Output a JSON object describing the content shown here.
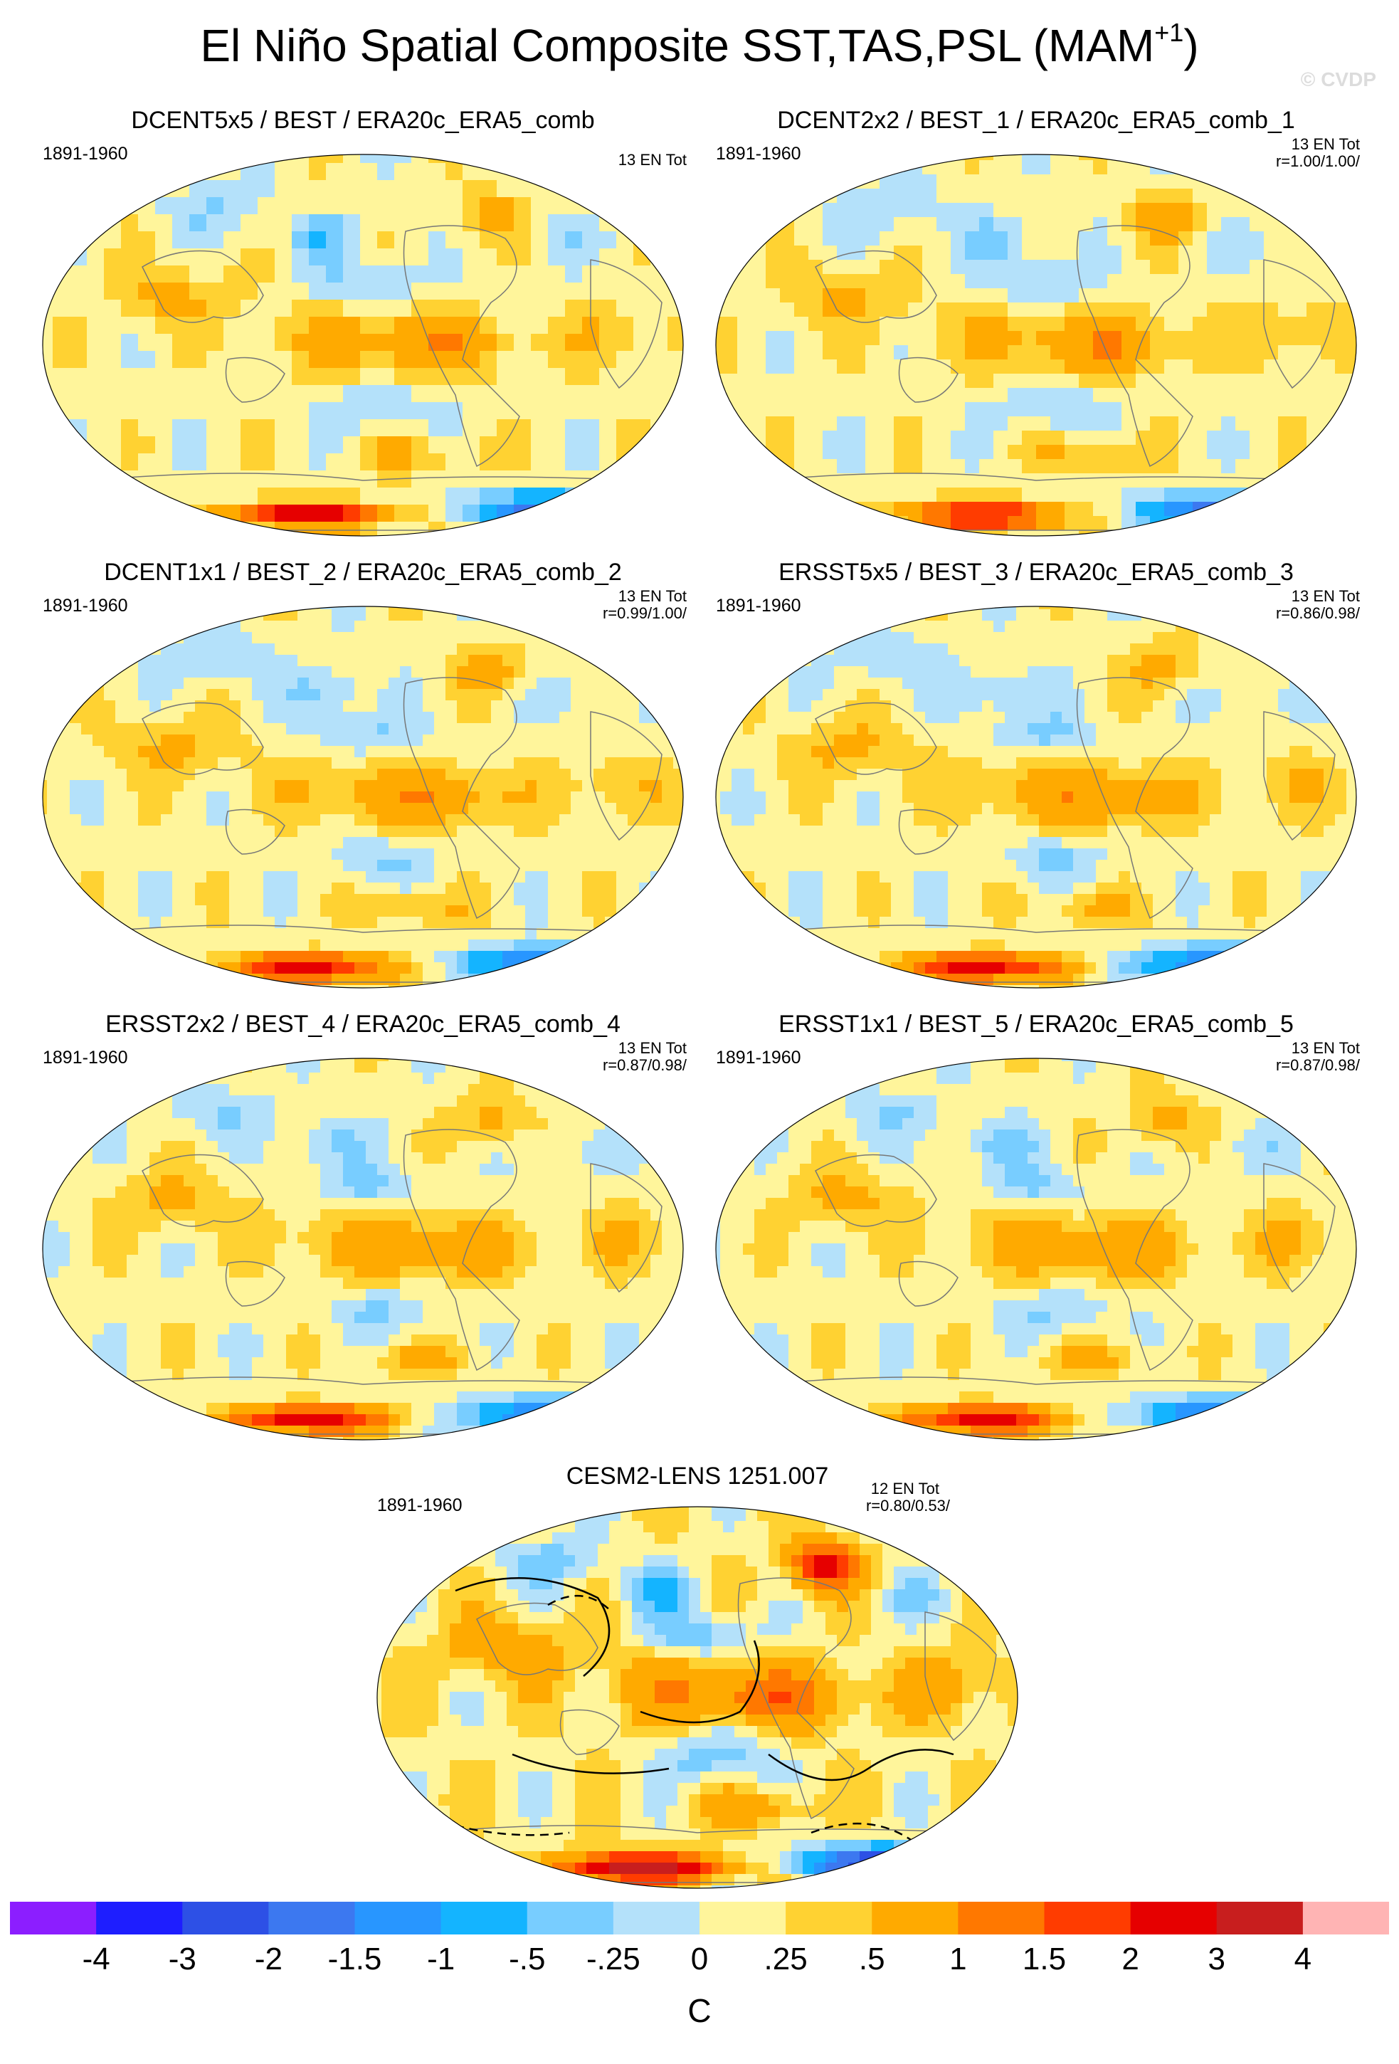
{
  "title_main": "El Niño Spatial Composite SST,TAS,PSL (MAM",
  "title_sup": "+1",
  "title_close": ")",
  "watermark": "© CVDP",
  "chart_data": [
    {
      "type": "heatmap",
      "projection": "Robinson",
      "variable": "SST/TAS composite anomaly (C)",
      "title": "DCENT5x5 / BEST / ERA20c_ERA5_comb",
      "period": "1891-1960",
      "count": "13 EN Tot",
      "corr": "",
      "contours": false
    },
    {
      "type": "heatmap",
      "projection": "Robinson",
      "variable": "SST/TAS composite anomaly (C)",
      "title": "DCENT2x2 / BEST_1 / ERA20c_ERA5_comb_1",
      "period": "1891-1960",
      "count": "13 EN Tot",
      "corr": "r=1.00/1.00/",
      "contours": false
    },
    {
      "type": "heatmap",
      "projection": "Robinson",
      "variable": "SST/TAS composite anomaly (C)",
      "title": "DCENT1x1 / BEST_2 / ERA20c_ERA5_comb_2",
      "period": "1891-1960",
      "count": "13 EN Tot",
      "corr": "r=0.99/1.00/",
      "contours": false
    },
    {
      "type": "heatmap",
      "projection": "Robinson",
      "variable": "SST/TAS composite anomaly (C)",
      "title": "ERSST5x5 / BEST_3 / ERA20c_ERA5_comb_3",
      "period": "1891-1960",
      "count": "13 EN Tot",
      "corr": "r=0.86/0.98/",
      "contours": false
    },
    {
      "type": "heatmap",
      "projection": "Robinson",
      "variable": "SST/TAS composite anomaly (C)",
      "title": "ERSST2x2 / BEST_4 / ERA20c_ERA5_comb_4",
      "period": "1891-1960",
      "count": "13 EN Tot",
      "corr": "r=0.87/0.98/",
      "contours": false
    },
    {
      "type": "heatmap",
      "projection": "Robinson",
      "variable": "SST/TAS composite anomaly (C)",
      "title": "ERSST1x1 / BEST_5 / ERA20c_ERA5_comb_5",
      "period": "1891-1960",
      "count": "13 EN Tot",
      "corr": "r=0.87/0.98/",
      "contours": false
    },
    {
      "type": "heatmap",
      "projection": "Robinson",
      "variable": "SST/TAS composite anomaly (C); PSL contours",
      "title": "CESM2-LENS 1251.007",
      "period": "1891-1960",
      "count": "12 EN Tot",
      "corr": "r=0.80/0.53/",
      "contours": true
    }
  ],
  "colorbar": {
    "unit": "C",
    "labels": [
      "-4",
      "-3",
      "-2",
      "-1.5",
      "-1",
      "-.5",
      "-.25",
      "0",
      ".25",
      ".5",
      "1",
      "1.5",
      "2",
      "3",
      "4"
    ],
    "colors": [
      "#8c1eff",
      "#1e1eff",
      "#2d50e6",
      "#3c78f0",
      "#2896ff",
      "#14b4ff",
      "#78cdff",
      "#b4e1fa",
      "#fff59b",
      "#ffd232",
      "#ffaa00",
      "#ff7800",
      "#ff3c00",
      "#e60000",
      "#c81e1e",
      "#ffb4b4"
    ]
  }
}
